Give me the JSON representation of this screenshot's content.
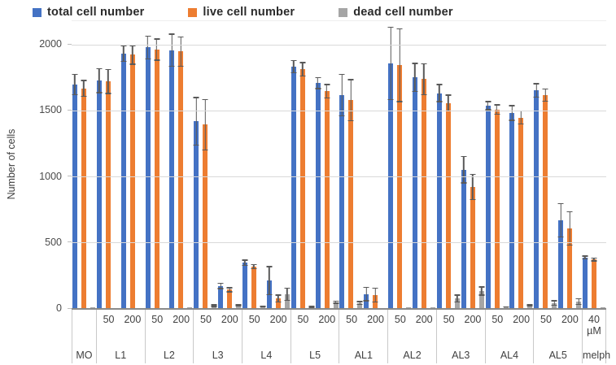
{
  "chart_data": {
    "type": "bar",
    "title": "",
    "ylabel": "Number of cells",
    "xlabel": "",
    "legend_position": "top",
    "grid": true,
    "yticks": [
      0,
      500,
      1000,
      1500,
      2000
    ],
    "ylim": [
      0,
      2180
    ],
    "series_names": [
      "total cell number",
      "live cell number",
      "dead cell number"
    ],
    "colors": {
      "total": "#4472C4",
      "live": "#ED7D31",
      "dead": "#A5A5A5",
      "error_bar": "#595959",
      "gridline": "#D9D9D9",
      "axis_text": "#404040"
    },
    "groups": [
      {
        "name": "MO",
        "doses": [
          {
            "dose": "",
            "total": 1700,
            "live": 1670,
            "dead": 12,
            "total_err": 80,
            "live_err": 65,
            "dead_err": 0
          }
        ]
      },
      {
        "name": "L1",
        "doses": [
          {
            "dose": "50",
            "total": 1730,
            "live": 1722,
            "dead": 8,
            "total_err": 95,
            "live_err": 95,
            "dead_err": 0
          },
          {
            "dose": "200",
            "total": 1935,
            "live": 1925,
            "dead": 8,
            "total_err": 65,
            "live_err": 75,
            "dead_err": 0
          }
        ]
      },
      {
        "name": "L2",
        "doses": [
          {
            "dose": "50",
            "total": 1980,
            "live": 1965,
            "dead": 8,
            "total_err": 90,
            "live_err": 85,
            "dead_err": 0
          },
          {
            "dose": "200",
            "total": 1960,
            "live": 1950,
            "dead": 10,
            "total_err": 125,
            "live_err": 115,
            "dead_err": 0
          }
        ]
      },
      {
        "name": "L3",
        "doses": [
          {
            "dose": "50",
            "total": 1420,
            "live": 1395,
            "dead": 25,
            "total_err": 185,
            "live_err": 195,
            "dead_err": 10
          },
          {
            "dose": "200",
            "total": 175,
            "live": 145,
            "dead": 30,
            "total_err": 25,
            "live_err": 20,
            "dead_err": 10
          }
        ]
      },
      {
        "name": "L4",
        "doses": [
          {
            "dose": "50",
            "total": 350,
            "live": 320,
            "dead": 18,
            "total_err": 25,
            "live_err": 20,
            "dead_err": 8
          },
          {
            "dose": "200",
            "total": 215,
            "live": 80,
            "dead": 110,
            "total_err": 110,
            "live_err": 30,
            "dead_err": 50
          }
        ]
      },
      {
        "name": "L5",
        "doses": [
          {
            "dose": "50",
            "total": 1835,
            "live": 1815,
            "dead": 15,
            "total_err": 50,
            "live_err": 55,
            "dead_err": 8
          },
          {
            "dose": "200",
            "total": 1710,
            "live": 1650,
            "dead": 50,
            "total_err": 45,
            "live_err": 55,
            "dead_err": 12
          }
        ]
      },
      {
        "name": "AL1",
        "doses": [
          {
            "dose": "50",
            "total": 1620,
            "live": 1580,
            "dead": 45,
            "total_err": 160,
            "live_err": 160,
            "dead_err": 15
          },
          {
            "dose": "200",
            "total": 112,
            "live": 105,
            "dead": 8,
            "total_err": 55,
            "live_err": 55,
            "dead_err": 0
          }
        ]
      },
      {
        "name": "AL2",
        "doses": [
          {
            "dose": "50",
            "total": 1860,
            "live": 1845,
            "dead": 15,
            "total_err": 280,
            "live_err": 280,
            "dead_err": 0
          },
          {
            "dose": "200",
            "total": 1755,
            "live": 1740,
            "dead": 15,
            "total_err": 110,
            "live_err": 120,
            "dead_err": 0
          }
        ]
      },
      {
        "name": "AL3",
        "doses": [
          {
            "dose": "50",
            "total": 1635,
            "live": 1560,
            "dead": 80,
            "total_err": 70,
            "live_err": 65,
            "dead_err": 30
          },
          {
            "dose": "200",
            "total": 1055,
            "live": 925,
            "dead": 135,
            "total_err": 105,
            "live_err": 100,
            "dead_err": 35
          }
        ]
      },
      {
        "name": "AL4",
        "doses": [
          {
            "dose": "50",
            "total": 1540,
            "live": 1510,
            "dead": 15,
            "total_err": 35,
            "live_err": 40,
            "dead_err": 5
          },
          {
            "dose": "200",
            "total": 1485,
            "live": 1450,
            "dead": 30,
            "total_err": 60,
            "live_err": 55,
            "dead_err": 10
          }
        ]
      },
      {
        "name": "AL5",
        "doses": [
          {
            "dose": "50",
            "total": 1655,
            "live": 1620,
            "dead": 45,
            "total_err": 55,
            "live_err": 50,
            "dead_err": 20
          },
          {
            "dose": "200",
            "total": 670,
            "live": 610,
            "dead": 55,
            "total_err": 130,
            "live_err": 130,
            "dead_err": 25
          }
        ]
      },
      {
        "name": "melph",
        "doses": [
          {
            "dose": "40",
            "dose_unit": "µM",
            "total": 390,
            "live": 375,
            "dead": 10,
            "total_err": 15,
            "live_err": 15,
            "dead_err": 0
          }
        ]
      }
    ]
  }
}
